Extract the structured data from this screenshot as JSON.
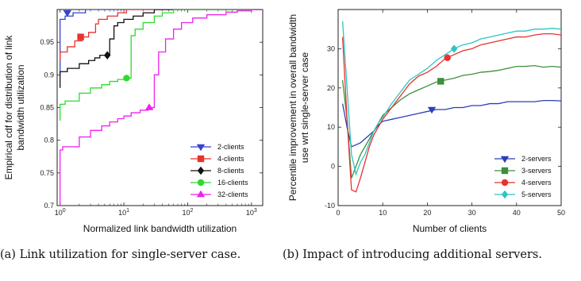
{
  "captions": {
    "a": "(a)  Link  utilization  for single-server case.",
    "b": "(b) Impact of introducing additional servers."
  },
  "chart_data": [
    {
      "type": "line",
      "subtype": "step-cdf",
      "title": "",
      "xlabel": "Normalized link bandwidth utilization",
      "ylabel": "Empirical cdf for distribution of link bandwidth utilization",
      "xscale": "log",
      "xlim": [
        0.9,
        1500
      ],
      "ylim": [
        0.7,
        1.0
      ],
      "xticks": [
        1,
        10,
        100,
        1000
      ],
      "xtick_labels": [
        "10^0",
        "10^1",
        "10^2",
        "10^3"
      ],
      "yticks": [
        0.7,
        0.75,
        0.8,
        0.85,
        0.9,
        0.95
      ],
      "ytick_labels": [
        "0.7",
        "0.75",
        "0.8",
        "0.85",
        "0.9",
        "0.95"
      ],
      "grid": false,
      "legend_position": "bottom-right",
      "series": [
        {
          "name": "2-clients",
          "color": "#3344cc",
          "marker": "triangle-down",
          "marker_at": [
            1.3,
            0.995
          ],
          "x": [
            1.0,
            1.0,
            1.2,
            1.6,
            2.5,
            2.5
          ],
          "y": [
            0.9,
            0.985,
            0.99,
            0.995,
            0.998,
            1.0
          ]
        },
        {
          "name": "4-clients",
          "color": "#e8322e",
          "marker": "square",
          "marker_at": [
            2.1,
            0.958
          ],
          "x": [
            1.0,
            1.0,
            1.3,
            1.7,
            2.2,
            2.8,
            3.6,
            4.0,
            5.5,
            8.0,
            11.0,
            11.0
          ],
          "y": [
            0.92,
            0.935,
            0.943,
            0.952,
            0.958,
            0.965,
            0.978,
            0.985,
            0.99,
            0.995,
            0.998,
            1.0
          ]
        },
        {
          "name": "8-clients",
          "color": "#111111",
          "marker": "diamond",
          "marker_at": [
            5.5,
            0.93
          ],
          "x": [
            1.0,
            1.0,
            1.3,
            2.0,
            2.8,
            3.5,
            4.2,
            5.0,
            6.0,
            6.0,
            7.0,
            8.0,
            10.0,
            14.0,
            20.0,
            30.0,
            30.0
          ],
          "y": [
            0.88,
            0.905,
            0.91,
            0.917,
            0.922,
            0.926,
            0.93,
            0.93,
            0.93,
            0.955,
            0.975,
            0.98,
            0.985,
            0.99,
            0.995,
            0.998,
            1.0
          ]
        },
        {
          "name": "16-clients",
          "color": "#2edb2e",
          "marker": "circle",
          "marker_at": [
            11,
            0.895
          ],
          "x": [
            1.0,
            1.0,
            1.2,
            2.0,
            3.0,
            4.5,
            6.0,
            8.0,
            10.0,
            12.0,
            13.0,
            13.0,
            15.0,
            20.0,
            30.0,
            40.0,
            60.0,
            60.0
          ],
          "y": [
            0.83,
            0.855,
            0.86,
            0.872,
            0.88,
            0.885,
            0.89,
            0.893,
            0.895,
            0.895,
            0.895,
            0.96,
            0.97,
            0.98,
            0.99,
            0.995,
            0.998,
            1.0
          ]
        },
        {
          "name": "32-clients",
          "color": "#ee22ee",
          "marker": "triangle-up",
          "marker_at": [
            25,
            0.85
          ],
          "x": [
            1.0,
            1.0,
            1.1,
            2.0,
            3.0,
            4.5,
            6.0,
            8.0,
            10.0,
            13.0,
            18.0,
            24.0,
            28.0,
            30.0,
            30.0,
            35.0,
            45.0,
            60.0,
            80.0,
            120.0,
            200.0,
            400.0,
            600.0,
            1000.0,
            1000.0
          ],
          "y": [
            0.7,
            0.785,
            0.79,
            0.805,
            0.815,
            0.822,
            0.828,
            0.833,
            0.837,
            0.842,
            0.846,
            0.849,
            0.85,
            0.85,
            0.9,
            0.935,
            0.955,
            0.97,
            0.98,
            0.987,
            0.992,
            0.996,
            0.998,
            0.999,
            1.0
          ]
        }
      ]
    },
    {
      "type": "line",
      "title": "",
      "xlabel": "Number of clients",
      "ylabel": "Percentile improvement in overall bandwidth use wrt single-server case",
      "xlim": [
        0,
        50
      ],
      "ylim": [
        -10,
        40
      ],
      "xticks": [
        0,
        10,
        20,
        30,
        40,
        50
      ],
      "xtick_labels": [
        "0",
        "10",
        "20",
        "30",
        "40",
        "50"
      ],
      "yticks": [
        -10,
        0,
        10,
        20,
        30
      ],
      "ytick_labels": [
        "-10",
        "0",
        "10",
        "20",
        "30"
      ],
      "grid": false,
      "legend_position": "bottom-right",
      "series": [
        {
          "name": "2-servers",
          "color": "#2a3fb8",
          "marker": "triangle-down",
          "marker_at": [
            21,
            14.5
          ],
          "x": [
            1,
            2,
            3,
            4,
            5,
            6,
            7,
            8,
            9,
            10,
            12,
            14,
            16,
            18,
            20,
            22,
            24,
            26,
            28,
            30,
            32,
            34,
            36,
            38,
            40,
            42,
            44,
            46,
            48,
            50
          ],
          "y": [
            16,
            10,
            5,
            5.5,
            6,
            7,
            8,
            9,
            10.5,
            11.5,
            12,
            12.5,
            13,
            13.5,
            14,
            14.5,
            14.5,
            15,
            15,
            15.5,
            15.5,
            16,
            16,
            16.5,
            16.5,
            16.5,
            16.5,
            16.8,
            16.8,
            16.7
          ]
        },
        {
          "name": "3-servers",
          "color": "#3d8f3d",
          "marker": "square",
          "marker_at": [
            23,
            21.7
          ],
          "x": [
            1,
            2,
            3,
            4,
            5,
            6,
            7,
            8,
            9,
            10,
            12,
            14,
            16,
            18,
            20,
            22,
            24,
            26,
            28,
            30,
            32,
            34,
            36,
            38,
            40,
            42,
            44,
            46,
            48,
            50
          ],
          "y": [
            22,
            12,
            -3,
            0,
            3,
            5,
            7,
            9,
            11,
            13,
            15,
            17,
            18.5,
            19.5,
            20.5,
            21.5,
            22,
            22.5,
            23.2,
            23.5,
            24,
            24.2,
            24.5,
            25,
            25.5,
            25.5,
            25.7,
            25.3,
            25.5,
            25.3
          ]
        },
        {
          "name": "4-servers",
          "color": "#e8322e",
          "marker": "circle",
          "marker_at": [
            24.5,
            27.7
          ],
          "x": [
            1,
            2,
            3,
            4,
            5,
            6,
            7,
            8,
            9,
            10,
            12,
            14,
            16,
            18,
            20,
            22,
            24,
            26,
            28,
            30,
            32,
            34,
            36,
            38,
            40,
            42,
            44,
            46,
            48,
            50
          ],
          "y": [
            33,
            12,
            -6,
            -6.5,
            -3,
            1,
            5,
            8,
            10,
            12,
            15,
            18,
            21,
            23,
            24,
            25.5,
            27.5,
            28.5,
            29.5,
            30,
            31,
            31.5,
            32,
            32.5,
            33,
            33,
            33.5,
            33.8,
            33.8,
            33.5
          ]
        },
        {
          "name": "5-servers",
          "color": "#2ec4c4",
          "marker": "diamond",
          "marker_at": [
            26,
            30
          ],
          "x": [
            1,
            2,
            3,
            4,
            5,
            6,
            7,
            8,
            9,
            10,
            12,
            14,
            16,
            18,
            20,
            22,
            24,
            26,
            28,
            30,
            32,
            34,
            36,
            38,
            40,
            42,
            44,
            46,
            48,
            50
          ],
          "y": [
            37,
            20,
            3,
            -2,
            1,
            3,
            6,
            9,
            11,
            12.5,
            16,
            19,
            22,
            23.5,
            25,
            27,
            28.5,
            30,
            31,
            31.5,
            32.5,
            33,
            33.5,
            34,
            34.5,
            34.5,
            35,
            35,
            35.2,
            35
          ]
        }
      ]
    }
  ]
}
